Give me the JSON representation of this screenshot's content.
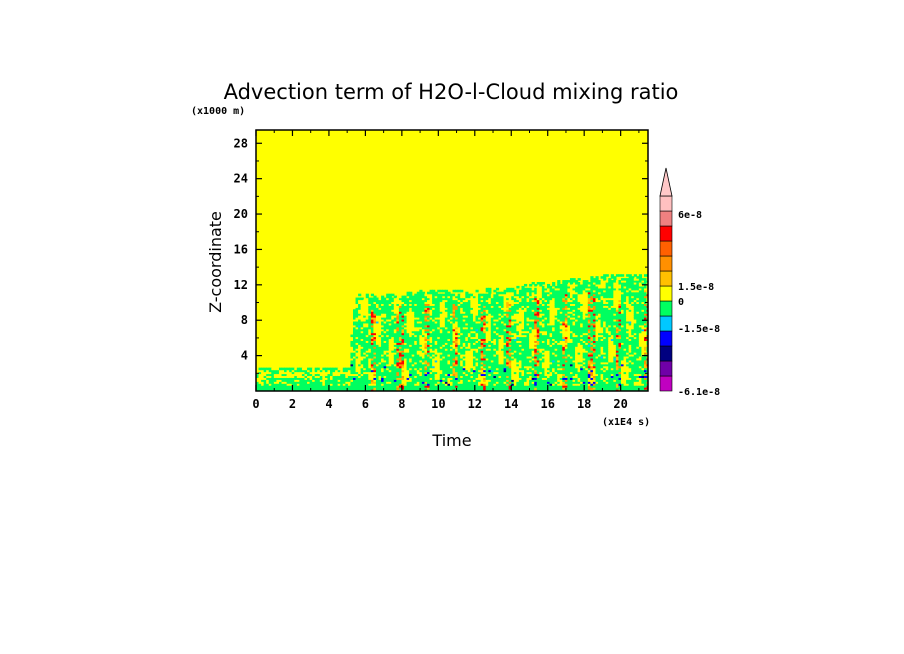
{
  "chart_data": {
    "type": "heatmap",
    "title": "Advection term of H2O-l-Cloud mixing ratio",
    "xlabel": "Time",
    "ylabel": "Z-coordinate",
    "x_unit": "(x1E4 s)",
    "y_unit": "(x1000 m)",
    "xlim": [
      0,
      21.5
    ],
    "ylim": [
      0,
      29.5
    ],
    "x_ticks": [
      0,
      2,
      4,
      6,
      8,
      10,
      12,
      14,
      16,
      18,
      20
    ],
    "y_ticks": [
      4,
      8,
      12,
      16,
      20,
      24,
      28
    ],
    "background_value_color": "#ffff00",
    "cloud_top_profile": [
      {
        "x": 0,
        "y": 2.7
      },
      {
        "x": 4.9,
        "y": 2.7
      },
      {
        "x": 5.1,
        "y": 4.5
      },
      {
        "x": 5.4,
        "y": 10.3
      },
      {
        "x": 7,
        "y": 10.4
      },
      {
        "x": 9,
        "y": 10.8
      },
      {
        "x": 11,
        "y": 10.8
      },
      {
        "x": 13,
        "y": 11.0
      },
      {
        "x": 15,
        "y": 11.6
      },
      {
        "x": 17,
        "y": 12.0
      },
      {
        "x": 19,
        "y": 12.5
      },
      {
        "x": 21.5,
        "y": 12.6
      }
    ],
    "colorbar": {
      "labels": [
        {
          "text": "6e-8",
          "value": 6e-08
        },
        {
          "text": "1.5e-8",
          "value": 1.5e-08
        },
        {
          "text": "0",
          "value": 0
        },
        {
          "text": "-1.5e-8",
          "value": -1.5e-08
        },
        {
          "text": "-6.1e-8",
          "value": -6.1e-08
        }
      ],
      "levels": [
        {
          "color": "#c000c0"
        },
        {
          "color": "#7000a8"
        },
        {
          "color": "#000080"
        },
        {
          "color": "#0000ff"
        },
        {
          "color": "#00c8ff"
        },
        {
          "color": "#00ff60"
        },
        {
          "color": "#ffff00"
        },
        {
          "color": "#ffc000"
        },
        {
          "color": "#ff9000"
        },
        {
          "color": "#ff6000"
        },
        {
          "color": "#ff0000"
        },
        {
          "color": "#f08080"
        },
        {
          "color": "#ffc0c0"
        }
      ],
      "overflow_arrow_color": "#ffc8c8"
    }
  }
}
